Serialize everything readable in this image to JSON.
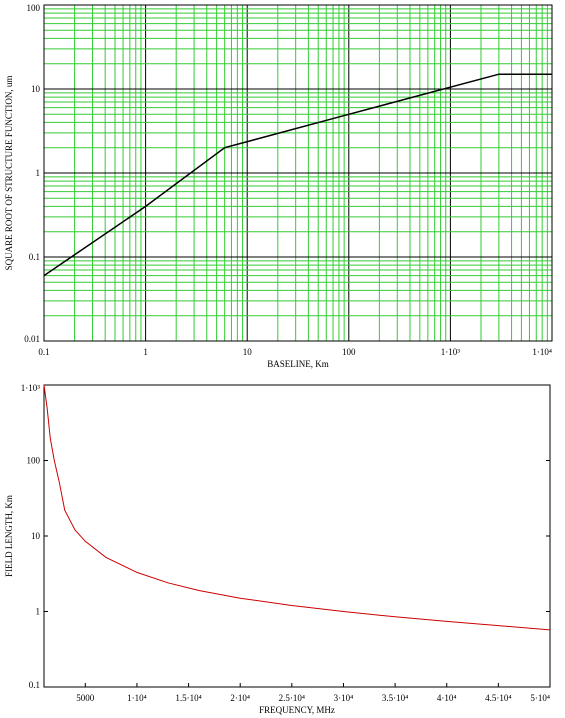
{
  "chart_data": [
    {
      "type": "line",
      "xlabel": "BASELINE, Km",
      "ylabel": "SQUARE ROOT OF STRUCTURE FUNCTION, um",
      "xscale": "log",
      "yscale": "log",
      "xlim": [
        0.1,
        10000
      ],
      "ylim": [
        0.01,
        100
      ],
      "grid": true,
      "grid_color": "#33cc33",
      "line_color": "#000000",
      "x_tick_labels": [
        "0.1",
        "1",
        "10",
        "100",
        "1·10³",
        "1·10⁴"
      ],
      "x_tick_values": [
        0.1,
        1,
        10,
        100,
        1000,
        10000
      ],
      "y_tick_labels": [
        "0.01",
        "0.1",
        "1",
        "10",
        "100"
      ],
      "y_tick_values": [
        0.01,
        0.1,
        1,
        10,
        100
      ],
      "series": [
        {
          "x": [
            0.1,
            1,
            6,
            100,
            3000,
            10000
          ],
          "y": [
            0.06,
            0.4,
            2.0,
            5.0,
            15.0,
            15.0
          ]
        }
      ]
    },
    {
      "type": "line",
      "xlabel": "FREQUENCY, MHz",
      "ylabel": "FIELD LENGTH, Km",
      "xscale": "linear",
      "yscale": "log",
      "xlim": [
        1000,
        50000
      ],
      "ylim": [
        0.1,
        1000
      ],
      "grid": false,
      "line_color": "#cc0000",
      "x_tick_labels": [
        "5000",
        "1·10⁴",
        "1.5·10⁴",
        "2·10⁴",
        "2.5·10⁴",
        "3·10⁴",
        "3.5·10⁴",
        "4·10⁴",
        "4.5·10⁴",
        "5·10⁴"
      ],
      "x_tick_values": [
        5000,
        10000,
        15000,
        20000,
        25000,
        30000,
        35000,
        40000,
        45000,
        50000
      ],
      "y_tick_labels": [
        "0.1",
        "1",
        "10",
        "100",
        "1·10³"
      ],
      "y_tick_values": [
        0.1,
        1,
        10,
        100,
        1000
      ],
      "series": [
        {
          "x": [
            1000,
            1300,
            1600,
            2000,
            2500,
            3000,
            4000,
            5000,
            7000,
            10000,
            13000,
            16000,
            20000,
            25000,
            30000,
            35000,
            40000,
            45000,
            50000
          ],
          "y": [
            1000,
            500,
            200,
            100,
            50,
            22,
            12,
            8.5,
            5.2,
            3.3,
            2.4,
            1.9,
            1.5,
            1.2,
            1.0,
            0.85,
            0.74,
            0.65,
            0.57
          ]
        }
      ]
    }
  ]
}
